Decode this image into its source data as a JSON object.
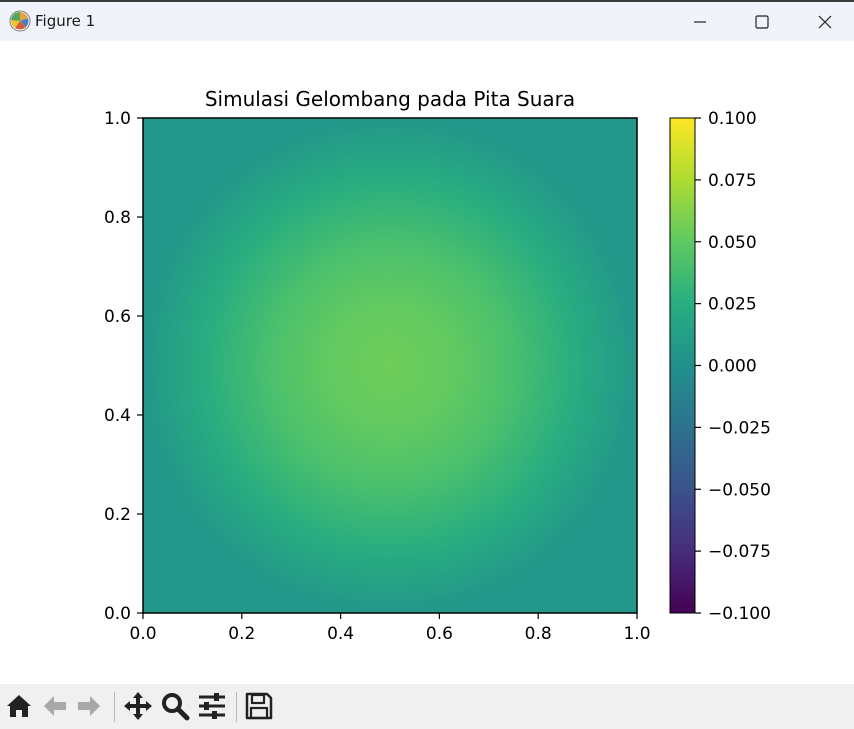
{
  "window": {
    "title": "Figure 1",
    "icon": "matplotlib-logo-icon",
    "controls": [
      "minimize-icon",
      "maximize-icon",
      "close-icon"
    ]
  },
  "toolbar": {
    "tools": [
      {
        "name": "home",
        "icon": "home-icon"
      },
      {
        "name": "back",
        "icon": "back-arrow-icon"
      },
      {
        "name": "forward",
        "icon": "forward-arrow-icon"
      },
      {
        "name": "pan",
        "icon": "pan-move-icon"
      },
      {
        "name": "zoom",
        "icon": "zoom-magnifier-icon"
      },
      {
        "name": "configure-subplots",
        "icon": "sliders-icon"
      },
      {
        "name": "save",
        "icon": "save-floppy-icon"
      }
    ]
  },
  "chart_data": {
    "type": "heatmap",
    "title": "Simulasi Gelombang pada Pita Suara",
    "xlabel": "",
    "ylabel": "",
    "xlim": [
      0.0,
      1.0
    ],
    "ylim": [
      0.0,
      1.0
    ],
    "x_ticks": [
      "0.0",
      "0.2",
      "0.4",
      "0.6",
      "0.8",
      "1.0"
    ],
    "y_ticks": [
      "0.0",
      "0.2",
      "0.4",
      "0.6",
      "0.8",
      "1.0"
    ],
    "field": "peak ≈ 0.055 at center (0.5, 0.5), decreasing to ≈ 0.005 at the edges",
    "field_peak": 0.055,
    "field_edge": 0.005,
    "field_center": [
      0.5,
      0.5
    ],
    "colormap": "viridis",
    "colorbar": {
      "vmin": -0.1,
      "vmax": 0.1,
      "ticks": [
        "0.100",
        "0.075",
        "0.050",
        "0.025",
        "0.000",
        "−0.025",
        "−0.050",
        "−0.075",
        "−0.100"
      ]
    },
    "grid": false
  }
}
